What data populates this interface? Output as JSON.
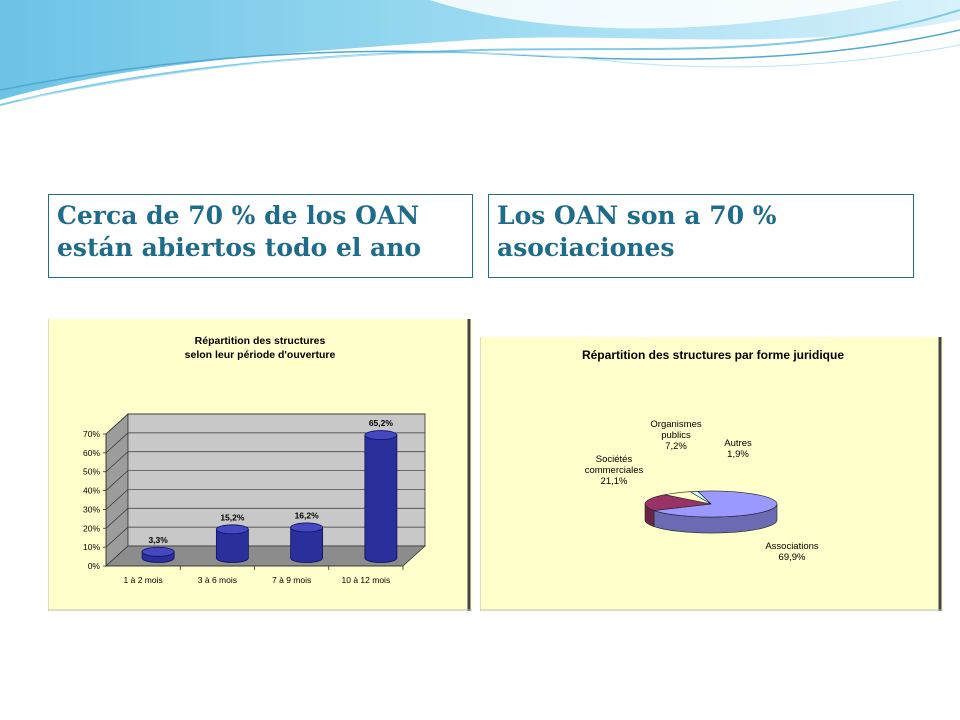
{
  "slide": {
    "left_heading": "Cerca de 70 % de los OAN están abiertos todo el ano",
    "right_heading": "Los OAN son a 70 % asociaciones"
  },
  "colors": {
    "heading_text": "#1e6c8a",
    "box_border": "#1f6f8b",
    "chart_background": "#ffffcc",
    "bar_fill": "#2b2f9b",
    "pie_associations": "#9999ff",
    "pie_societes": "#993366",
    "pie_organismes": "#ffffcc",
    "pie_autres": "#ccffff"
  },
  "chart_data": [
    {
      "type": "bar",
      "title": "Répartition des structures selon leur période d'ouverture",
      "title_lines": [
        "Répartition des structures",
        "selon leur période d'ouverture"
      ],
      "categories": [
        "1 à 2 mois",
        "3 à 6 mois",
        "7 à 9 mois",
        "10 à 12 mois"
      ],
      "values": [
        3.3,
        15.2,
        16.2,
        65.2
      ],
      "value_labels": [
        "3,3%",
        "15,2%",
        "16,2%",
        "65,2%"
      ],
      "ylim": [
        0,
        70
      ],
      "y_ticks": [
        "0%",
        "10%",
        "20%",
        "30%",
        "40%",
        "50%",
        "60%",
        "70%"
      ],
      "grid": true,
      "style": "3d-cylinder"
    },
    {
      "type": "pie",
      "title": "Répartition des structures par forme juridique",
      "style": "3d",
      "slices": [
        {
          "label_lines": [
            "Associations",
            "69,9%"
          ],
          "label": "Associations",
          "value": 69.9,
          "color": "#9999ff"
        },
        {
          "label_lines": [
            "Sociétés",
            "commerciales",
            "21,1%"
          ],
          "label": "Sociétés commerciales",
          "value": 21.1,
          "color": "#993366"
        },
        {
          "label_lines": [
            "Organismes",
            "publics",
            "7,2%"
          ],
          "label": "Organismes publics",
          "value": 7.2,
          "color": "#ffffcc"
        },
        {
          "label_lines": [
            "Autres",
            "1,9%"
          ],
          "label": "Autres",
          "value": 1.9,
          "color": "#ccffff"
        }
      ]
    }
  ]
}
